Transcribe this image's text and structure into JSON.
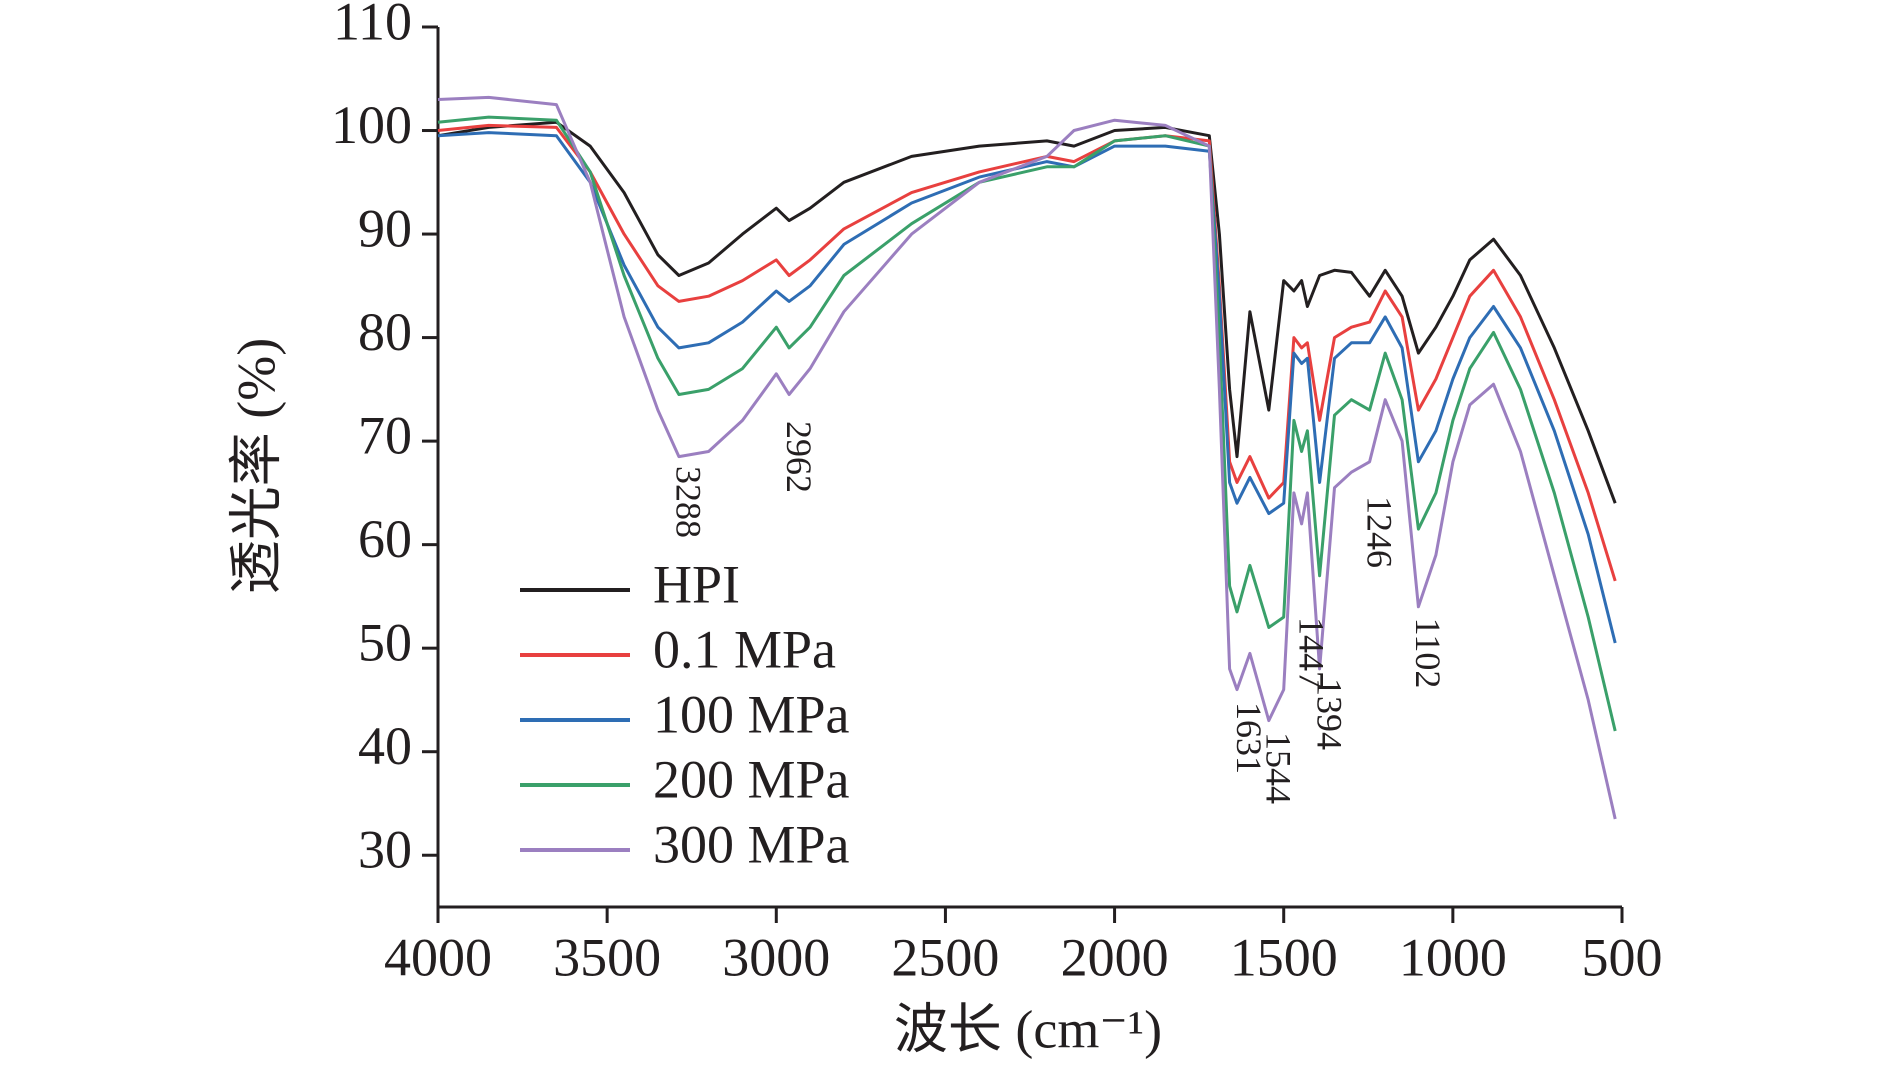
{
  "chart_data": {
    "type": "line",
    "x_label": "波长 (cm⁻¹)",
    "y_label": "透光率 (%)",
    "xlim": [
      4000,
      500
    ],
    "ylim": [
      25,
      110
    ],
    "xticks": [
      4000,
      3500,
      3000,
      2500,
      2000,
      1500,
      1000,
      500
    ],
    "yticks": [
      30,
      40,
      50,
      60,
      70,
      80,
      90,
      100,
      110
    ],
    "legend": "lower left",
    "x": [
      4000,
      3850,
      3650,
      3550,
      3450,
      3350,
      3288,
      3200,
      3100,
      3000,
      2962,
      2900,
      2800,
      2600,
      2400,
      2200,
      2120,
      2000,
      1850,
      1720,
      1690,
      1660,
      1638,
      1600,
      1544,
      1500,
      1470,
      1447,
      1430,
      1394,
      1350,
      1300,
      1246,
      1200,
      1150,
      1102,
      1050,
      1000,
      950,
      880,
      800,
      700,
      600,
      520
    ],
    "series": [
      {
        "name": "HPI",
        "color": "#231f20",
        "values": [
          99.5,
          100.3,
          100.8,
          98.5,
          94,
          88,
          86,
          87.2,
          90,
          92.5,
          91.3,
          92.5,
          95,
          97.5,
          98.5,
          99,
          98.5,
          100,
          100.3,
          99.5,
          90,
          75,
          68.5,
          82.5,
          73,
          85.5,
          84.5,
          85.5,
          83,
          86,
          86.5,
          86.3,
          84,
          86.5,
          84,
          78.5,
          81,
          84,
          87.5,
          89.5,
          86,
          79,
          71,
          64
        ]
      },
      {
        "name": "0.1 MPa",
        "color": "#e8403f",
        "values": [
          100,
          100.5,
          100.3,
          96,
          90,
          85,
          83.5,
          84,
          85.5,
          87.5,
          86,
          87.5,
          90.5,
          94,
          96,
          97.5,
          97,
          99,
          99.5,
          99,
          85,
          68,
          66,
          68.5,
          64.5,
          66,
          80,
          79,
          79.5,
          72,
          80,
          81,
          81.5,
          84.5,
          82,
          73,
          76,
          80,
          84,
          86.5,
          82,
          74,
          65,
          56.5
        ]
      },
      {
        "name": "100 MPa",
        "color": "#2e6db4",
        "values": [
          99.5,
          99.8,
          99.5,
          95,
          87,
          81,
          79,
          79.5,
          81.5,
          84.5,
          83.5,
          85,
          89,
          93,
          95.5,
          97,
          96.5,
          98.5,
          98.5,
          98,
          84,
          66,
          64,
          66.5,
          63,
          64,
          78.5,
          77.5,
          78,
          66,
          78,
          79.5,
          79.5,
          82,
          79,
          68,
          71,
          76,
          80,
          83,
          79,
          71,
          61,
          50.5
        ]
      },
      {
        "name": "200 MPa",
        "color": "#3aa06a",
        "values": [
          100.8,
          101.3,
          101,
          96,
          86,
          78,
          74.5,
          75,
          77,
          81,
          79,
          81,
          86,
          91,
          95,
          96.5,
          96.5,
          99,
          99.5,
          98.5,
          80,
          56,
          53.5,
          58,
          52,
          53,
          72,
          69,
          71,
          57,
          72.5,
          74,
          73,
          78.5,
          74,
          61.5,
          65,
          72,
          77,
          80.5,
          75,
          65,
          53,
          42
        ]
      },
      {
        "name": "300 MPa",
        "color": "#9b7fc0",
        "values": [
          103,
          103.2,
          102.5,
          95,
          82,
          73,
          68.5,
          69,
          72,
          76.5,
          74.5,
          77,
          82.5,
          90,
          95,
          97.5,
          100,
          101,
          100.5,
          98.5,
          75,
          48,
          46,
          49.5,
          43,
          46,
          65,
          62,
          65,
          48,
          65.5,
          67,
          68,
          74,
          70,
          54,
          59,
          68,
          73.5,
          75.5,
          69,
          57,
          45,
          33.5
        ]
      }
    ],
    "annotations": [
      {
        "text": "3288",
        "x": 3288
      },
      {
        "text": "2962",
        "x": 2962
      },
      {
        "text": "1631",
        "x": 1631
      },
      {
        "text": "1544",
        "x": 1544
      },
      {
        "text": "1447",
        "x": 1447
      },
      {
        "text": "1394",
        "x": 1394
      },
      {
        "text": "1246",
        "x": 1246
      },
      {
        "text": "1102",
        "x": 1102
      }
    ]
  }
}
